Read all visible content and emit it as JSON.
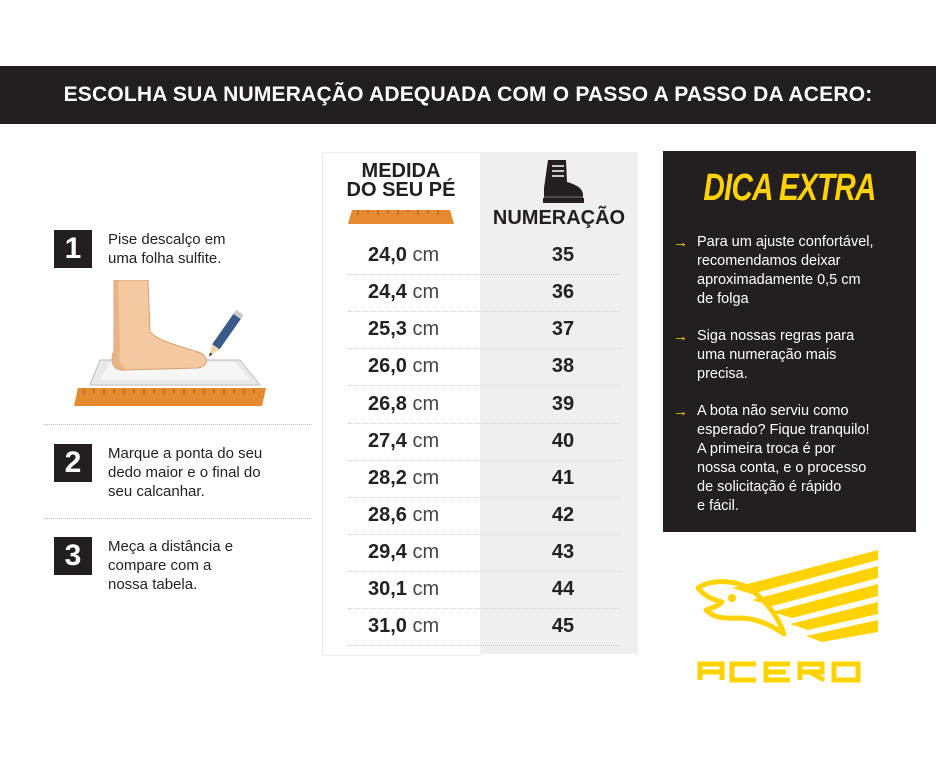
{
  "banner": {
    "title": "ESCOLHA SUA NUMERAÇÃO ADEQUADA COM O PASSO A PASSO DA ACERO:"
  },
  "steps": [
    {
      "number": "1",
      "text": "Pise descalço em\numa folha sulfite."
    },
    {
      "number": "2",
      "text": "Marque a ponta do seu\ndedo maior e o final do\nseu calcanhar."
    },
    {
      "number": "3",
      "text": "Meça a distância e\ncompare com a\nnossa tabela."
    }
  ],
  "table": {
    "header_left_line1": "MEDIDA",
    "header_left_line2": "DO SEU PÉ",
    "header_right": "NUMERAÇÃO",
    "unit": "cm",
    "rows": [
      {
        "cm": "24,0",
        "size": "35"
      },
      {
        "cm": "24,4",
        "size": "36"
      },
      {
        "cm": "25,3",
        "size": "37"
      },
      {
        "cm": "26,0",
        "size": "38"
      },
      {
        "cm": "26,8",
        "size": "39"
      },
      {
        "cm": "27,4",
        "size": "40"
      },
      {
        "cm": "28,2",
        "size": "41"
      },
      {
        "cm": "28,6",
        "size": "42"
      },
      {
        "cm": "29,4",
        "size": "43"
      },
      {
        "cm": "30,1",
        "size": "44"
      },
      {
        "cm": "31,0",
        "size": "45"
      }
    ]
  },
  "dica": {
    "title": "DICA EXTRA",
    "arrow": "→",
    "tips": [
      "Para um ajuste confortável,\nrecomendamos deixar\naproximadamente 0,5 cm\nde folga",
      "Siga nossas regras  para\numa numeração mais\nprecisa.",
      "A bota não serviu como\nesperado? Fique tranquilo!\nA primeira troca é por\nnossa conta, e o processo\nde solicitação é rápido\ne fácil."
    ]
  },
  "logo": {
    "text": "ACERO"
  },
  "colors": {
    "dark": "#231f20",
    "accent": "#ffd200",
    "ruler": "#e58a2e"
  },
  "icons": {
    "boot": "boot-icon",
    "foot": "foot-on-paper-illustration",
    "ruler": "ruler-icon",
    "logo": "eagle-logo"
  }
}
